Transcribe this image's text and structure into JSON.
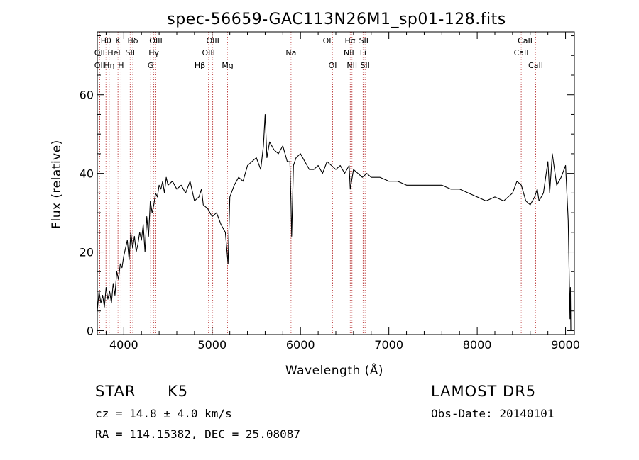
{
  "title": "spec-56659-GAC113N26M1_sp01-128.fits",
  "chart_data": {
    "type": "line",
    "xlabel": "Wavelength (Å)",
    "ylabel": "Flux (relative)",
    "xlim": [
      3700,
      9100
    ],
    "ylim": [
      -1,
      76
    ],
    "xticks": [
      4000,
      5000,
      6000,
      7000,
      8000,
      9000
    ],
    "yticks": [
      0,
      20,
      40,
      60
    ],
    "grid": false,
    "series": [
      {
        "x": [
          3700,
          3720,
          3740,
          3760,
          3780,
          3800,
          3820,
          3840,
          3860,
          3880,
          3900,
          3920,
          3940,
          3960,
          3980,
          4000,
          4020,
          4040,
          4060,
          4080,
          4100,
          4120,
          4140,
          4160,
          4180,
          4200,
          4220,
          4240,
          4260,
          4280,
          4300,
          4320,
          4340,
          4360,
          4380,
          4400,
          4420,
          4440,
          4460,
          4480,
          4500,
          4550,
          4600,
          4650,
          4700,
          4750,
          4800,
          4850,
          4880,
          4900,
          4950,
          5000,
          5050,
          5100,
          5150,
          5180,
          5200,
          5250,
          5300,
          5350,
          5400,
          5450,
          5500,
          5550,
          5580,
          5600,
          5620,
          5650,
          5700,
          5750,
          5800,
          5850,
          5880,
          5890,
          5900,
          5920,
          5950,
          6000,
          6050,
          6100,
          6150,
          6200,
          6250,
          6300,
          6350,
          6400,
          6450,
          6500,
          6550,
          6563,
          6600,
          6650,
          6700,
          6750,
          6800,
          6850,
          6900,
          7000,
          7100,
          7200,
          7300,
          7400,
          7500,
          7600,
          7700,
          7800,
          7900,
          8000,
          8100,
          8200,
          8300,
          8400,
          8450,
          8500,
          8550,
          8600,
          8650,
          8680,
          8700,
          8750,
          8800,
          8820,
          8850,
          8900,
          8950,
          9000,
          9030,
          9050,
          9055,
          9060
        ],
        "y": [
          5,
          10,
          7,
          9,
          6,
          11,
          8,
          10,
          7,
          12,
          9,
          15,
          13,
          17,
          16,
          19,
          21,
          23,
          18,
          25,
          21,
          24,
          20,
          22,
          25,
          23,
          27,
          20,
          29,
          24,
          33,
          30,
          32,
          35,
          34,
          37,
          36,
          38,
          35,
          39,
          37,
          38,
          36,
          37,
          35,
          38,
          33,
          34,
          36,
          32,
          31,
          29,
          30,
          27,
          25,
          17,
          34,
          37,
          39,
          38,
          42,
          43,
          44,
          41,
          47,
          55,
          44,
          48,
          46,
          45,
          47,
          43,
          43,
          35,
          24,
          42,
          44,
          45,
          43,
          41,
          41,
          42,
          40,
          43,
          42,
          41,
          42,
          40,
          42,
          36,
          41,
          40,
          39,
          40,
          39,
          39,
          39,
          38,
          38,
          37,
          37,
          37,
          37,
          37,
          36,
          36,
          35,
          34,
          33,
          34,
          33,
          35,
          38,
          37,
          33,
          32,
          34,
          36,
          33,
          35,
          43,
          35,
          45,
          37,
          39,
          42,
          28,
          3,
          11,
          0
        ]
      }
    ],
    "line_markers": [
      {
        "label": "Hθ",
        "wavelength": 3798,
        "row": 1
      },
      {
        "label": "OII",
        "wavelength": 3727,
        "row": 2
      },
      {
        "label": "OII",
        "wavelength": 3727,
        "row": 3
      },
      {
        "label": "Hη",
        "wavelength": 3835,
        "row": 3
      },
      {
        "label": "HeI",
        "wavelength": 3889,
        "row": 2
      },
      {
        "label": "K",
        "wavelength": 3934,
        "row": 1
      },
      {
        "label": "H",
        "wavelength": 3968,
        "row": 3
      },
      {
        "label": "Hδ",
        "wavelength": 4102,
        "row": 1
      },
      {
        "label": "SII",
        "wavelength": 4072,
        "row": 2
      },
      {
        "label": "OIII",
        "wavelength": 4363,
        "row": 1
      },
      {
        "label": "Hγ",
        "wavelength": 4340,
        "row": 2
      },
      {
        "label": "G",
        "wavelength": 4304,
        "row": 3
      },
      {
        "label": "Hβ",
        "wavelength": 4861,
        "row": 3
      },
      {
        "label": "OIII",
        "wavelength": 4959,
        "row": 2
      },
      {
        "label": "OIII",
        "wavelength": 5007,
        "row": 1
      },
      {
        "label": "Mg",
        "wavelength": 5175,
        "row": 3
      },
      {
        "label": "Na",
        "wavelength": 5893,
        "row": 2
      },
      {
        "label": "OI",
        "wavelength": 6300,
        "row": 1
      },
      {
        "label": "OI",
        "wavelength": 6364,
        "row": 3
      },
      {
        "label": "NII",
        "wavelength": 6548,
        "row": 2
      },
      {
        "label": "Hα",
        "wavelength": 6563,
        "row": 1
      },
      {
        "label": "NII",
        "wavelength": 6583,
        "row": 3
      },
      {
        "label": "SII",
        "wavelength": 6716,
        "row": 1
      },
      {
        "label": "Li",
        "wavelength": 6708,
        "row": 2
      },
      {
        "label": "SII",
        "wavelength": 6731,
        "row": 3
      },
      {
        "label": "CaII",
        "wavelength": 8498,
        "row": 2
      },
      {
        "label": "CaII",
        "wavelength": 8542,
        "row": 1
      },
      {
        "label": "CaII",
        "wavelength": 8662,
        "row": 3
      }
    ]
  },
  "info": {
    "class": "STAR",
    "subclass": "K5",
    "survey": "LAMOST DR5",
    "redshift": "cz = 14.8 ± 4.0 km/s",
    "obs_date": "Obs-Date: 20140101",
    "coords": "RA = 114.15382, DEC =  25.08087"
  },
  "colors": {
    "line": "#000000",
    "marker_line": "#b22222",
    "axis": "#000000",
    "background": "#ffffff"
  }
}
